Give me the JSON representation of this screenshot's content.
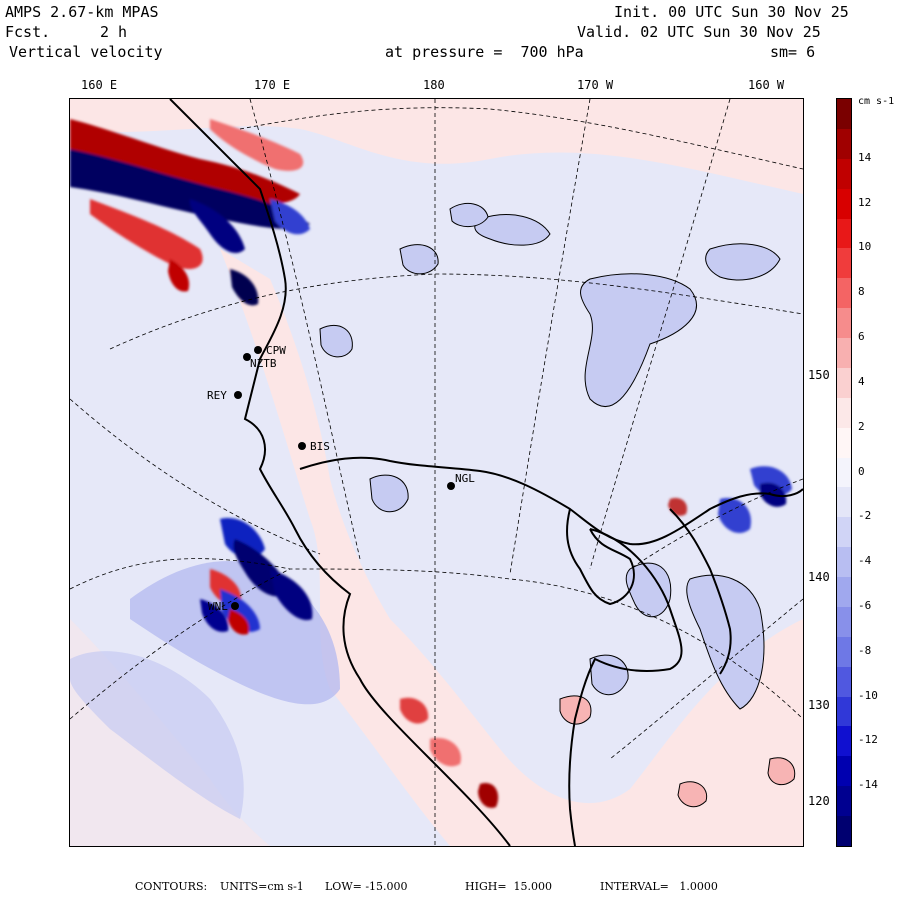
{
  "header": {
    "model": "AMPS 2.67-km MPAS",
    "fcst_label": "Fcst.",
    "fcst_value": "2 h",
    "field": "Vertical velocity",
    "init": "Init. 00 UTC Sun 30 Nov 25",
    "valid": "Valid. 02 UTC Sun 30 Nov 25",
    "pressure": "at pressure =  700 hPa",
    "smoothing": "sm= 6"
  },
  "lon_labels": [
    "160 E",
    "170 E",
    "180",
    "170 W",
    "160 W"
  ],
  "lat_labels": [
    "150 W",
    "140 W",
    "130 W",
    "120 W"
  ],
  "stations": [
    "CPW",
    "NZTB",
    "REY",
    "BIS",
    "NGL",
    "WNL"
  ],
  "colorbar": {
    "unit": "cm s-1",
    "tick_labels": [
      "14",
      "12",
      "10",
      "8",
      "6",
      "4",
      "2",
      "0",
      "-2",
      "-4",
      "-6",
      "-8",
      "-10",
      "-12",
      "-14"
    ],
    "colors": [
      "#7a0000",
      "#a00000",
      "#c00000",
      "#d80000",
      "#e81818",
      "#f03c3c",
      "#f46464",
      "#f68c8c",
      "#f8b0b0",
      "#fad0d0",
      "#fce8e8",
      "#fff6f6",
      "#f4f4fc",
      "#e4e6f8",
      "#d0d4f6",
      "#b8bef2",
      "#a0a8ee",
      "#8890ea",
      "#6e78e6",
      "#5058e0",
      "#3038d8",
      "#1010d0",
      "#0000b0",
      "#000090",
      "#000070"
    ]
  },
  "footer": {
    "contours": "CONTOURS:",
    "units": "UNITS=cm s-1",
    "low": "LOW= -15.000",
    "high": "HIGH=  15.000",
    "interval": "INTERVAL=   1.0000"
  }
}
